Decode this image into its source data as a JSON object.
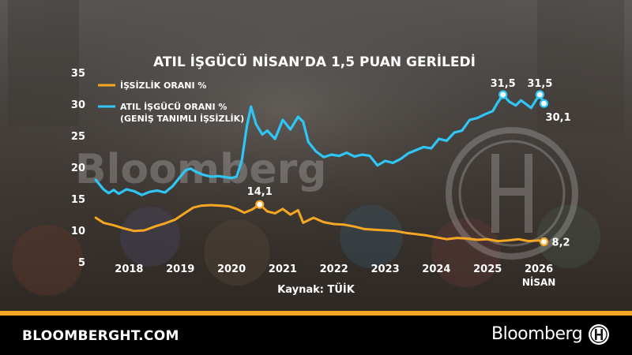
{
  "footer": {
    "site": "BLOOMBERGHT.COM",
    "brand": "Bloomberg",
    "badge_text": "HT"
  },
  "watermark": {
    "brand": "Bloomberg"
  },
  "colors": {
    "orange": "#F5A623",
    "blue": "#2FC6F5",
    "footer_bg": "#000000"
  },
  "chart_data": {
    "type": "line",
    "title": "ATIL İŞGÜCÜ NİSAN’DA 1,5 PUAN GERİLEDİ",
    "source": "Kaynak: TÜİK",
    "ylim": [
      5,
      35
    ],
    "yticks": [
      "5",
      "10",
      "15",
      "20",
      "25",
      "30",
      "35"
    ],
    "xlim": [
      2017.3,
      2026.4
    ],
    "xticks": [
      {
        "label": "2018",
        "year": 2018
      },
      {
        "label": "2019",
        "year": 2019
      },
      {
        "label": "2020",
        "year": 2020
      },
      {
        "label": "2021",
        "year": 2021
      },
      {
        "label": "2022",
        "year": 2022
      },
      {
        "label": "2023",
        "year": 2023
      },
      {
        "label": "2024",
        "year": 2024
      },
      {
        "label": "2025",
        "year": 2025
      },
      {
        "label": "2026",
        "year": 2026
      }
    ],
    "xtick_sub": "NİSAN",
    "grid": false,
    "legend_position": "top-left",
    "series": [
      {
        "name": "İŞSİZLİK ORANI %",
        "color": "#F5A623",
        "points": [
          [
            2017.35,
            12.0
          ],
          [
            2017.5,
            11.2
          ],
          [
            2017.7,
            10.8
          ],
          [
            2017.9,
            10.3
          ],
          [
            2018.1,
            9.9
          ],
          [
            2018.3,
            10.0
          ],
          [
            2018.5,
            10.6
          ],
          [
            2018.7,
            11.1
          ],
          [
            2018.9,
            11.7
          ],
          [
            2019.1,
            12.8
          ],
          [
            2019.25,
            13.6
          ],
          [
            2019.4,
            13.9
          ],
          [
            2019.6,
            14.0
          ],
          [
            2019.8,
            13.9
          ],
          [
            2019.95,
            13.8
          ],
          [
            2020.1,
            13.4
          ],
          [
            2020.25,
            12.8
          ],
          [
            2020.4,
            13.3
          ],
          [
            2020.55,
            14.1
          ],
          [
            2020.7,
            13.0
          ],
          [
            2020.85,
            12.7
          ],
          [
            2021.0,
            13.4
          ],
          [
            2021.15,
            12.5
          ],
          [
            2021.3,
            13.2
          ],
          [
            2021.4,
            11.2
          ],
          [
            2021.6,
            12.0
          ],
          [
            2021.8,
            11.3
          ],
          [
            2022.0,
            11.0
          ],
          [
            2022.2,
            10.9
          ],
          [
            2022.4,
            10.6
          ],
          [
            2022.6,
            10.2
          ],
          [
            2022.8,
            10.1
          ],
          [
            2023.0,
            10.0
          ],
          [
            2023.2,
            9.9
          ],
          [
            2023.4,
            9.6
          ],
          [
            2023.6,
            9.4
          ],
          [
            2023.8,
            9.2
          ],
          [
            2024.0,
            8.9
          ],
          [
            2024.2,
            8.6
          ],
          [
            2024.4,
            8.8
          ],
          [
            2024.6,
            8.7
          ],
          [
            2024.8,
            8.5
          ],
          [
            2025.0,
            8.6
          ],
          [
            2025.2,
            8.3
          ],
          [
            2025.4,
            8.4
          ],
          [
            2025.6,
            8.6
          ],
          [
            2025.8,
            8.3
          ],
          [
            2026.0,
            8.4
          ],
          [
            2026.1,
            8.2
          ]
        ]
      },
      {
        "name": "ATIL İŞGÜCÜ ORANI % (GENİŞ TANIMLI İŞSİZLİK)",
        "color": "#2FC6F5",
        "points": [
          [
            2017.35,
            18.0
          ],
          [
            2017.5,
            16.5
          ],
          [
            2017.6,
            15.9
          ],
          [
            2017.7,
            16.4
          ],
          [
            2017.8,
            15.8
          ],
          [
            2017.95,
            16.5
          ],
          [
            2018.1,
            16.2
          ],
          [
            2018.25,
            15.6
          ],
          [
            2018.4,
            16.1
          ],
          [
            2018.55,
            16.3
          ],
          [
            2018.7,
            16.0
          ],
          [
            2018.85,
            17.0
          ],
          [
            2019.0,
            18.5
          ],
          [
            2019.1,
            19.5
          ],
          [
            2019.2,
            19.8
          ],
          [
            2019.3,
            19.3
          ],
          [
            2019.45,
            18.8
          ],
          [
            2019.6,
            18.5
          ],
          [
            2019.75,
            18.6
          ],
          [
            2019.9,
            18.4
          ],
          [
            2020.0,
            18.3
          ],
          [
            2020.1,
            18.5
          ],
          [
            2020.2,
            21.0
          ],
          [
            2020.3,
            26.5
          ],
          [
            2020.38,
            29.6
          ],
          [
            2020.48,
            26.8
          ],
          [
            2020.6,
            25.2
          ],
          [
            2020.7,
            25.8
          ],
          [
            2020.85,
            24.5
          ],
          [
            2021.0,
            27.5
          ],
          [
            2021.15,
            26.0
          ],
          [
            2021.3,
            28.0
          ],
          [
            2021.4,
            27.2
          ],
          [
            2021.5,
            24.0
          ],
          [
            2021.65,
            22.5
          ],
          [
            2021.8,
            21.6
          ],
          [
            2021.95,
            22.0
          ],
          [
            2022.1,
            21.8
          ],
          [
            2022.25,
            22.3
          ],
          [
            2022.4,
            21.7
          ],
          [
            2022.55,
            22.0
          ],
          [
            2022.7,
            21.8
          ],
          [
            2022.85,
            20.3
          ],
          [
            2023.0,
            21.0
          ],
          [
            2023.15,
            20.7
          ],
          [
            2023.3,
            21.3
          ],
          [
            2023.45,
            22.2
          ],
          [
            2023.6,
            22.7
          ],
          [
            2023.75,
            23.2
          ],
          [
            2023.9,
            23.0
          ],
          [
            2024.05,
            24.5
          ],
          [
            2024.2,
            24.2
          ],
          [
            2024.35,
            25.5
          ],
          [
            2024.5,
            25.8
          ],
          [
            2024.65,
            27.5
          ],
          [
            2024.8,
            27.8
          ],
          [
            2024.95,
            28.4
          ],
          [
            2025.1,
            28.9
          ],
          [
            2025.2,
            30.3
          ],
          [
            2025.3,
            31.5
          ],
          [
            2025.42,
            30.4
          ],
          [
            2025.55,
            29.8
          ],
          [
            2025.65,
            30.6
          ],
          [
            2025.75,
            30.0
          ],
          [
            2025.85,
            29.4
          ],
          [
            2025.95,
            30.7
          ],
          [
            2026.02,
            31.5
          ],
          [
            2026.1,
            30.1
          ]
        ]
      }
    ],
    "annotations": [
      {
        "series": 0,
        "x": 2020.55,
        "y": 14.1,
        "label": "14,1",
        "anchor": "above-left"
      },
      {
        "series": 0,
        "x": 2026.1,
        "y": 8.2,
        "label": "8,2",
        "anchor": "right"
      },
      {
        "series": 1,
        "x": 2025.3,
        "y": 31.5,
        "label": "31,5",
        "anchor": "above"
      },
      {
        "series": 1,
        "x": 2026.02,
        "y": 31.5,
        "label": "31,5",
        "anchor": "above"
      },
      {
        "series": 1,
        "x": 2026.1,
        "y": 30.1,
        "label": "30,1",
        "anchor": "below-right"
      }
    ]
  }
}
